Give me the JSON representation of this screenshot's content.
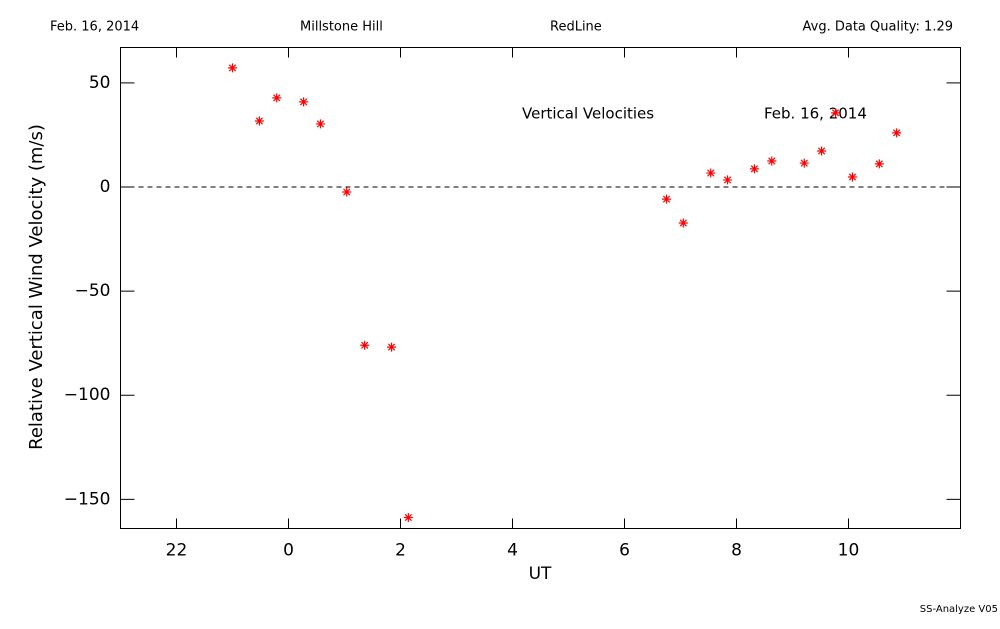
{
  "chart_data": {
    "type": "scatter",
    "header": [
      "Feb. 16, 2014",
      "Millstone Hill",
      "RedLine",
      "Avg. Data Quality: 1.29"
    ],
    "annotations": [
      "Vertical Velocities",
      "Feb. 16, 2014"
    ],
    "footer": "SS-Analyze V05",
    "xlabel": "UT",
    "ylabel": "Relative Vertical Wind Velocity  (m/s)",
    "xlim": [
      21,
      36
    ],
    "ylim": [
      -164,
      67
    ],
    "xticks": [
      {
        "value": 22,
        "label": "22"
      },
      {
        "value": 24,
        "label": "0"
      },
      {
        "value": 26,
        "label": "2"
      },
      {
        "value": 28,
        "label": "4"
      },
      {
        "value": 30,
        "label": "6"
      },
      {
        "value": 32,
        "label": "8"
      },
      {
        "value": 34,
        "label": "10"
      }
    ],
    "yticks": [
      {
        "value": 50,
        "label": "50"
      },
      0,
      {
        "value": -50,
        "label": "−50"
      },
      {
        "value": -100,
        "label": "−100"
      },
      {
        "value": -150,
        "label": "−150"
      }
    ],
    "reference_line": 0,
    "color": "#ff0000",
    "x": [
      23.0,
      23.48,
      23.79,
      24.27,
      24.57,
      25.04,
      25.36,
      25.84,
      26.14,
      30.75,
      31.05,
      31.54,
      31.84,
      32.32,
      32.63,
      33.21,
      33.52,
      33.77,
      34.07,
      34.55,
      34.86
    ],
    "values": [
      57.2,
      31.7,
      42.8,
      40.9,
      30.3,
      -2.4,
      -76.0,
      -76.9,
      -158.7,
      -5.8,
      -17.3,
      6.7,
      3.4,
      8.7,
      12.5,
      11.5,
      17.3,
      35.6,
      4.8,
      11.1,
      26.0
    ]
  }
}
